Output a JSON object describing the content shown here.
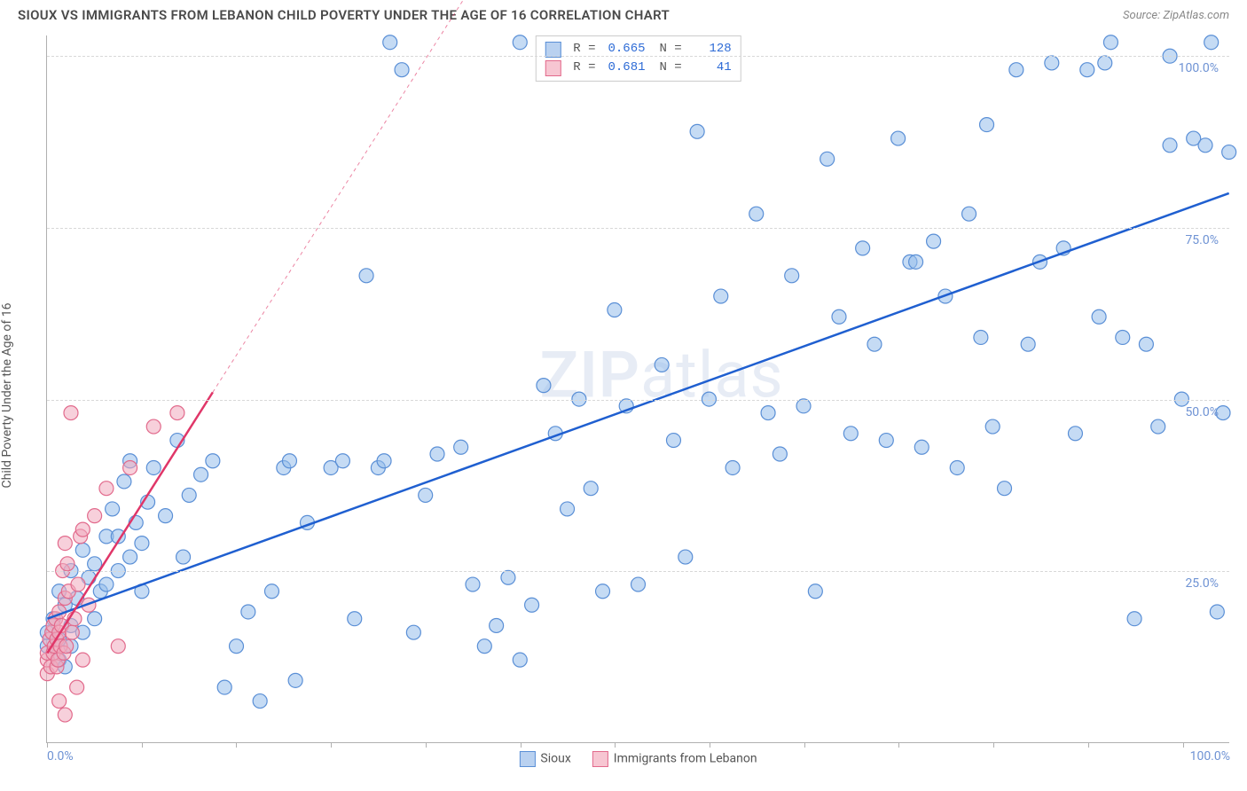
{
  "header": {
    "title": "SIOUX VS IMMIGRANTS FROM LEBANON CHILD POVERTY UNDER THE AGE OF 16 CORRELATION CHART",
    "source_prefix": "Source: ",
    "source": "ZipAtlas.com"
  },
  "watermark": {
    "zip": "ZIP",
    "atlas": "atlas"
  },
  "chart": {
    "type": "scatter",
    "ylabel": "Child Poverty Under the Age of 16",
    "xlim": [
      0,
      100
    ],
    "ylim": [
      0,
      103
    ],
    "background_color": "#ffffff",
    "grid_color": "#d8d8d8",
    "axis_color": "#b0b0b0",
    "tick_color": "#6f93d4",
    "marker_radius": 8,
    "marker_stroke_width": 1.2,
    "line_width": 2.5,
    "x_ticks": [
      0,
      8,
      16,
      24,
      32,
      40,
      48,
      56,
      64,
      72,
      80,
      88,
      96
    ],
    "x_tick_labels": {
      "0": "0.0%",
      "100": "100.0%"
    },
    "y_ticks": [
      25,
      50,
      75,
      100
    ],
    "y_tick_labels": {
      "25": "25.0%",
      "50": "50.0%",
      "75": "75.0%",
      "100": "100.0%"
    }
  },
  "stats_legend": {
    "rows": [
      {
        "swatch_fill": "#b9d1f0",
        "swatch_stroke": "#5a8fd6",
        "r_label": "R =",
        "r": "0.665",
        "n_label": "N =",
        "n": "128"
      },
      {
        "swatch_fill": "#f7c6d2",
        "swatch_stroke": "#e26a8c",
        "r_label": "R =",
        "r": "0.681",
        "n_label": "N =",
        "n": "41"
      }
    ]
  },
  "bottom_legend": {
    "items": [
      {
        "label": "Sioux",
        "fill": "#b9d1f0",
        "stroke": "#5a8fd6"
      },
      {
        "label": "Immigants from Lebanon",
        "display_label": "Immigrants from Lebanon",
        "fill": "#f7c6d2",
        "stroke": "#e26a8c"
      }
    ]
  },
  "series": [
    {
      "name": "Sioux",
      "marker_fill": "rgba(150,190,235,0.55)",
      "marker_stroke": "#5a8fd6",
      "trend": {
        "x1": 0,
        "y1": 18,
        "x2": 100,
        "y2": 80,
        "color": "#1f5fd0",
        "dash": "none",
        "extend_dash_to": null
      },
      "points": [
        [
          0,
          14
        ],
        [
          0,
          16
        ],
        [
          0.5,
          18
        ],
        [
          1,
          12
        ],
        [
          1,
          15
        ],
        [
          1.5,
          20
        ],
        [
          1,
          22
        ],
        [
          1.5,
          11
        ],
        [
          2,
          17
        ],
        [
          2,
          14
        ],
        [
          2,
          25
        ],
        [
          2.5,
          21
        ],
        [
          3,
          16
        ],
        [
          3,
          28
        ],
        [
          3.5,
          24
        ],
        [
          4,
          18
        ],
        [
          4,
          26
        ],
        [
          4.5,
          22
        ],
        [
          5,
          30
        ],
        [
          5,
          23
        ],
        [
          5.5,
          34
        ],
        [
          6,
          25
        ],
        [
          6,
          30
        ],
        [
          6.5,
          38
        ],
        [
          7,
          27
        ],
        [
          7,
          41
        ],
        [
          7.5,
          32
        ],
        [
          8,
          22
        ],
        [
          8,
          29
        ],
        [
          8.5,
          35
        ],
        [
          9,
          40
        ],
        [
          10,
          33
        ],
        [
          11,
          44
        ],
        [
          11.5,
          27
        ],
        [
          12,
          36
        ],
        [
          13,
          39
        ],
        [
          14,
          41
        ],
        [
          15,
          8
        ],
        [
          16,
          14
        ],
        [
          17,
          19
        ],
        [
          18,
          6
        ],
        [
          19,
          22
        ],
        [
          20,
          40
        ],
        [
          20.5,
          41
        ],
        [
          21,
          9
        ],
        [
          22,
          32
        ],
        [
          24,
          40
        ],
        [
          25,
          41
        ],
        [
          26,
          18
        ],
        [
          27,
          68
        ],
        [
          28,
          40
        ],
        [
          28.5,
          41
        ],
        [
          29,
          102
        ],
        [
          30,
          98
        ],
        [
          31,
          16
        ],
        [
          32,
          36
        ],
        [
          33,
          42
        ],
        [
          35,
          43
        ],
        [
          36,
          23
        ],
        [
          37,
          14
        ],
        [
          38,
          17
        ],
        [
          39,
          24
        ],
        [
          40,
          12
        ],
        [
          40,
          102
        ],
        [
          41,
          20
        ],
        [
          42,
          52
        ],
        [
          43,
          45
        ],
        [
          44,
          34
        ],
        [
          45,
          50
        ],
        [
          46,
          37
        ],
        [
          47,
          22
        ],
        [
          48,
          63
        ],
        [
          49,
          49
        ],
        [
          50,
          23
        ],
        [
          52,
          55
        ],
        [
          53,
          44
        ],
        [
          54,
          27
        ],
        [
          55,
          89
        ],
        [
          56,
          50
        ],
        [
          57,
          65
        ],
        [
          58,
          40
        ],
        [
          60,
          77
        ],
        [
          61,
          48
        ],
        [
          62,
          42
        ],
        [
          63,
          68
        ],
        [
          64,
          49
        ],
        [
          65,
          22
        ],
        [
          66,
          85
        ],
        [
          67,
          62
        ],
        [
          68,
          45
        ],
        [
          69,
          72
        ],
        [
          70,
          58
        ],
        [
          71,
          44
        ],
        [
          72,
          88
        ],
        [
          73,
          70
        ],
        [
          73.5,
          70
        ],
        [
          74,
          43
        ],
        [
          75,
          73
        ],
        [
          76,
          65
        ],
        [
          77,
          40
        ],
        [
          78,
          77
        ],
        [
          79,
          59
        ],
        [
          79.5,
          90
        ],
        [
          80,
          46
        ],
        [
          81,
          37
        ],
        [
          82,
          98
        ],
        [
          83,
          58
        ],
        [
          84,
          70
        ],
        [
          85,
          99
        ],
        [
          86,
          72
        ],
        [
          87,
          45
        ],
        [
          88,
          98
        ],
        [
          89,
          62
        ],
        [
          89.5,
          99
        ],
        [
          90,
          102
        ],
        [
          91,
          59
        ],
        [
          92,
          18
        ],
        [
          93,
          58
        ],
        [
          94,
          46
        ],
        [
          95,
          87
        ],
        [
          95,
          100
        ],
        [
          96,
          50
        ],
        [
          97,
          88
        ],
        [
          98,
          87
        ],
        [
          98.5,
          102
        ],
        [
          99,
          19
        ],
        [
          99.5,
          48
        ],
        [
          100,
          86
        ]
      ]
    },
    {
      "name": "Immigrants from Lebanon",
      "marker_fill": "rgba(240,170,190,0.55)",
      "marker_stroke": "#e26a8c",
      "trend": {
        "x1": 0,
        "y1": 13,
        "x2": 14,
        "y2": 51,
        "color": "#e03668",
        "dash": "none",
        "extend_dash_to": [
          47,
          140
        ]
      },
      "points": [
        [
          0,
          10
        ],
        [
          0,
          12
        ],
        [
          0,
          13
        ],
        [
          0.2,
          15
        ],
        [
          0.3,
          11
        ],
        [
          0.4,
          16
        ],
        [
          0.5,
          13
        ],
        [
          0.5,
          17
        ],
        [
          0.6,
          14
        ],
        [
          0.7,
          18
        ],
        [
          0.8,
          15
        ],
        [
          0.8,
          11
        ],
        [
          0.9,
          12
        ],
        [
          1,
          16
        ],
        [
          1,
          19
        ],
        [
          1.1,
          14
        ],
        [
          1.2,
          17
        ],
        [
          1.3,
          25
        ],
        [
          1.4,
          13
        ],
        [
          1.5,
          29
        ],
        [
          1.5,
          21
        ],
        [
          1.6,
          14
        ],
        [
          1.7,
          26
        ],
        [
          1.8,
          22
        ],
        [
          1,
          6
        ],
        [
          1.5,
          4
        ],
        [
          2,
          48
        ],
        [
          2.1,
          16
        ],
        [
          2.3,
          18
        ],
        [
          2.5,
          8
        ],
        [
          2.6,
          23
        ],
        [
          2.8,
          30
        ],
        [
          3,
          12
        ],
        [
          3,
          31
        ],
        [
          3.5,
          20
        ],
        [
          4,
          33
        ],
        [
          5,
          37
        ],
        [
          6,
          14
        ],
        [
          7,
          40
        ],
        [
          9,
          46
        ],
        [
          11,
          48
        ]
      ]
    }
  ]
}
